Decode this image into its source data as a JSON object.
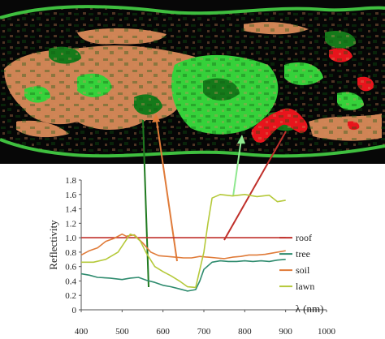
{
  "chart_data": {
    "type": "line",
    "xlabel": "λ (nm)",
    "ylabel": "Reflectivity",
    "xlim": [
      400,
      1000
    ],
    "ylim": [
      0,
      1.8
    ],
    "x_ticks": [
      400,
      500,
      600,
      700,
      800,
      900,
      1000
    ],
    "y_ticks": [
      0,
      0.2,
      0.4,
      0.6,
      0.8,
      1.0,
      1.2,
      1.4,
      1.6,
      1.8
    ],
    "y_tick_labels": [
      "0",
      "0.2",
      "0.4",
      "0.6",
      "0.8",
      "1.0",
      "1.2",
      "1.4",
      "1.6",
      "1.8"
    ],
    "grid": false,
    "legend_position": "right",
    "series": [
      {
        "name": "roof",
        "color": "#c0302b",
        "x": [
          400,
          900
        ],
        "y": [
          1.0,
          1.0
        ]
      },
      {
        "name": "tree",
        "color": "#2e8b6e",
        "x": [
          400,
          420,
          440,
          470,
          500,
          520,
          540,
          560,
          580,
          600,
          620,
          640,
          660,
          680,
          690,
          700,
          720,
          740,
          760,
          780,
          800,
          820,
          840,
          860,
          880,
          900
        ],
        "y": [
          0.5,
          0.48,
          0.45,
          0.44,
          0.42,
          0.44,
          0.45,
          0.41,
          0.38,
          0.34,
          0.32,
          0.29,
          0.26,
          0.28,
          0.4,
          0.56,
          0.66,
          0.68,
          0.67,
          0.67,
          0.68,
          0.67,
          0.68,
          0.67,
          0.69,
          0.7
        ]
      },
      {
        "name": "soil",
        "color": "#e07b39",
        "x": [
          400,
          420,
          440,
          460,
          480,
          500,
          510,
          530,
          550,
          570,
          590,
          610,
          630,
          650,
          670,
          690,
          710,
          730,
          750,
          770,
          790,
          810,
          830,
          850,
          870,
          900
        ],
        "y": [
          0.76,
          0.82,
          0.86,
          0.95,
          0.99,
          1.05,
          1.02,
          1.04,
          0.93,
          0.8,
          0.75,
          0.74,
          0.73,
          0.72,
          0.72,
          0.74,
          0.73,
          0.72,
          0.71,
          0.73,
          0.74,
          0.76,
          0.76,
          0.77,
          0.79,
          0.82
        ]
      },
      {
        "name": "lawn",
        "color": "#b5c93a",
        "x": [
          400,
          430,
          460,
          490,
          510,
          520,
          530,
          545,
          560,
          580,
          600,
          620,
          640,
          660,
          680,
          700,
          710,
          720,
          740,
          770,
          800,
          830,
          860,
          880,
          900
        ],
        "y": [
          0.66,
          0.66,
          0.7,
          0.8,
          0.97,
          1.05,
          1.03,
          0.95,
          0.78,
          0.6,
          0.53,
          0.47,
          0.4,
          0.32,
          0.31,
          0.8,
          1.2,
          1.55,
          1.6,
          1.58,
          1.6,
          1.57,
          1.59,
          1.5,
          1.52
        ]
      }
    ]
  }
}
